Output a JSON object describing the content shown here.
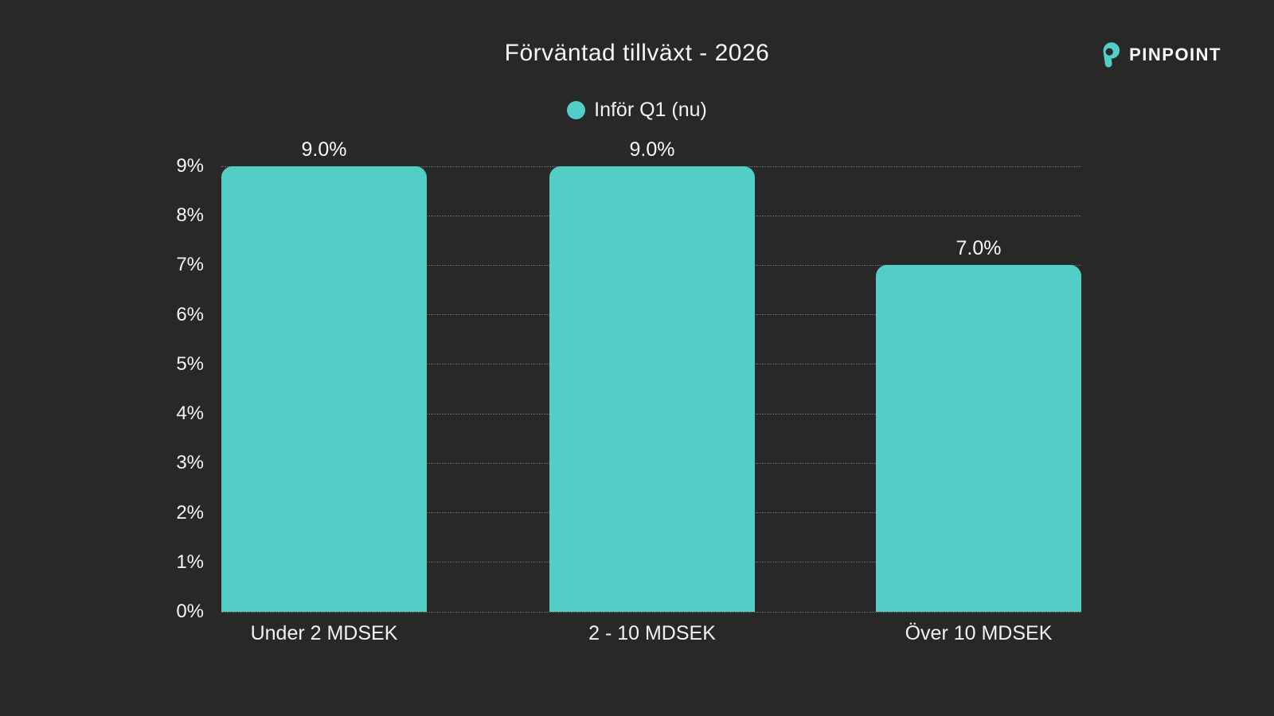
{
  "title": "Förväntad tillväxt - 2026",
  "brand": {
    "name": "PINPOINT"
  },
  "legend": {
    "label": "Inför Q1 (nu)"
  },
  "colors": {
    "background": "#282828",
    "bar": "#53cec7",
    "accent": "#53cec7",
    "text": "#f5f5f5",
    "gridline": "rgba(255,255,255,0.38)"
  },
  "chart_data": {
    "type": "bar",
    "title": "Förväntad tillväxt - 2026",
    "categories": [
      "Under 2 MDSEK",
      "2 - 10 MDSEK",
      "Över 10 MDSEK"
    ],
    "series": [
      {
        "name": "Inför Q1 (nu)",
        "values": [
          9.0,
          9.0,
          7.0
        ]
      }
    ],
    "value_labels": [
      "9.0%",
      "9.0%",
      "7.0%"
    ],
    "ytick_labels": [
      "0%",
      "1%",
      "2%",
      "3%",
      "4%",
      "5%",
      "6%",
      "7%",
      "8%",
      "9%"
    ],
    "ylim": [
      0,
      9
    ],
    "ytick_step": 1,
    "xlabel": "",
    "ylabel": "",
    "grid": true,
    "legend_position": "top-center",
    "bar_color": "#53cec7"
  }
}
